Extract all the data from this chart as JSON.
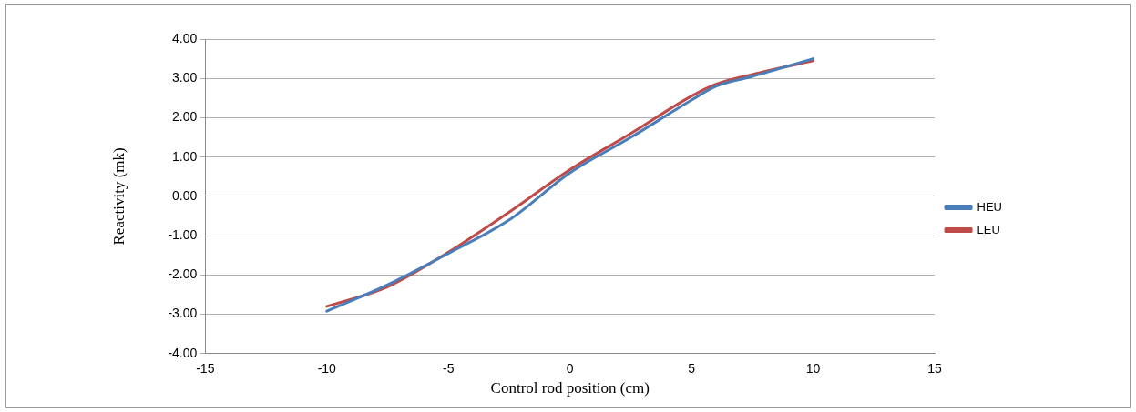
{
  "chart_data": {
    "type": "line",
    "xlabel": "Control rod position (cm)",
    "ylabel": "Reactivity (mk)",
    "xlim": [
      -15,
      15
    ],
    "xticks": [
      -15,
      -10,
      -5,
      0,
      5,
      10,
      15
    ],
    "ylim": [
      -4,
      4
    ],
    "yticks": [
      {
        "value": -4,
        "label": "-4.00"
      },
      {
        "value": -3,
        "label": "-3.00"
      },
      {
        "value": -2,
        "label": "-2.00"
      },
      {
        "value": -1,
        "label": "-1.00"
      },
      {
        "value": 0,
        "label": "0.00"
      },
      {
        "value": 1,
        "label": "1.00"
      },
      {
        "value": 2,
        "label": "2.00"
      },
      {
        "value": 3,
        "label": "3.00"
      },
      {
        "value": 4,
        "label": "4.00"
      }
    ],
    "grid": "y",
    "legend": "right",
    "marker": "none",
    "line_style": "solid",
    "series": [
      {
        "name": "HEU",
        "color": "#4a7ebb",
        "x": [
          -10,
          -7.5,
          -5,
          -2.5,
          0,
          2.5,
          5,
          6,
          7.5,
          10
        ],
        "values": [
          -2.92,
          -2.25,
          -1.45,
          -0.6,
          0.6,
          1.5,
          2.45,
          2.8,
          3.05,
          3.5
        ]
      },
      {
        "name": "LEU",
        "color": "#be4b48",
        "x": [
          -10,
          -7.5,
          -5,
          -2.5,
          0,
          2.5,
          5,
          6,
          7.5,
          10
        ],
        "values": [
          -2.8,
          -2.3,
          -1.42,
          -0.4,
          0.68,
          1.6,
          2.55,
          2.85,
          3.1,
          3.45
        ]
      }
    ]
  }
}
